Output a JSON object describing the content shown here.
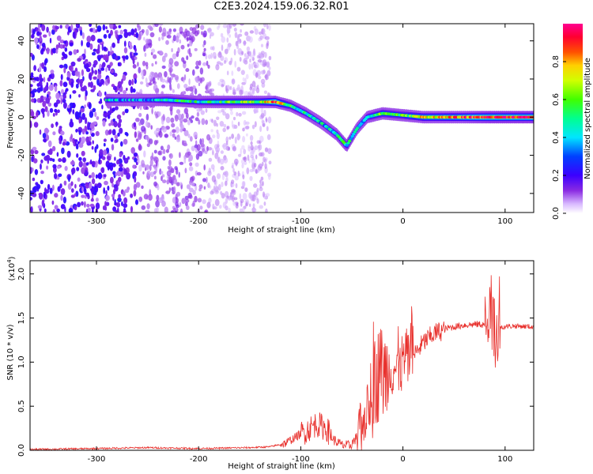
{
  "title": "C2E3.2024.159.06.32.R01",
  "colors": {
    "snr_line": "#e8302c",
    "frame": "#000000",
    "background": "#ffffff"
  },
  "chart_data": [
    {
      "type": "heatmap",
      "xlabel": "Height of straight line (km)",
      "ylabel": "Frequency (Hz)",
      "xlim": [
        -365,
        128
      ],
      "ylim": [
        -50,
        49
      ],
      "xticks": [
        -300,
        -200,
        -100,
        0,
        100
      ],
      "yticks": [
        -40,
        -20,
        0,
        20,
        40
      ],
      "colorbar": {
        "label": "Normalized spectral amplitude",
        "range": [
          0,
          1
        ],
        "ticks": [
          "0.0",
          "0.2",
          "0.4",
          "0.6",
          "0.8"
        ],
        "colormap": "rainbow (white-violet-blue-cyan-green-yellow-red-magenta)"
      },
      "ridge": [
        {
          "x": -290,
          "y": 9,
          "amp": 0.45
        },
        {
          "x": -260,
          "y": 9,
          "amp": 0.3
        },
        {
          "x": -230,
          "y": 9,
          "amp": 0.5
        },
        {
          "x": -200,
          "y": 8,
          "amp": 0.45
        },
        {
          "x": -170,
          "y": 8,
          "amp": 0.55
        },
        {
          "x": -140,
          "y": 8,
          "amp": 0.6
        },
        {
          "x": -125,
          "y": 8,
          "amp": 0.9
        },
        {
          "x": -110,
          "y": 6,
          "amp": 0.5
        },
        {
          "x": -95,
          "y": 2,
          "amp": 0.45
        },
        {
          "x": -80,
          "y": -3,
          "amp": 0.4
        },
        {
          "x": -65,
          "y": -9,
          "amp": 0.45
        },
        {
          "x": -55,
          "y": -15,
          "amp": 0.5
        },
        {
          "x": -45,
          "y": -6,
          "amp": 0.4
        },
        {
          "x": -35,
          "y": 0,
          "amp": 0.45
        },
        {
          "x": -20,
          "y": 2,
          "amp": 0.6
        },
        {
          "x": 0,
          "y": 1,
          "amp": 0.55
        },
        {
          "x": 20,
          "y": 0,
          "amp": 0.75
        },
        {
          "x": 50,
          "y": 0,
          "amp": 0.8
        },
        {
          "x": 85,
          "y": 0,
          "amp": 0.95
        },
        {
          "x": 128,
          "y": 0,
          "amp": 0.95
        }
      ],
      "noise_region": {
        "x_from": -365,
        "x_to": -130
      }
    },
    {
      "type": "line",
      "xlabel": "Height of straight line (km)",
      "ylabel": "SNR (10 * v/v)",
      "y_multiplier": "(x10",
      "y_multiplier_exp": "4",
      "y_multiplier_close": ")",
      "xlim": [
        -365,
        128
      ],
      "ylim": [
        0,
        2.15
      ],
      "xticks": [
        -300,
        -200,
        -100,
        0,
        100
      ],
      "yticks": [
        "0.0",
        "0.5",
        "1.0",
        "1.5",
        "2.0"
      ],
      "ytick_values": [
        0,
        0.5,
        1.0,
        1.5,
        2.0
      ],
      "series": [
        {
          "points": [
            [
              -365,
              0.01
            ],
            [
              -300,
              0.02
            ],
            [
              -250,
              0.03
            ],
            [
              -200,
              0.02
            ],
            [
              -150,
              0.03
            ],
            [
              -130,
              0.04
            ],
            [
              -115,
              0.08
            ],
            [
              -105,
              0.15
            ],
            [
              -95,
              0.22
            ],
            [
              -85,
              0.3
            ],
            [
              -75,
              0.25
            ],
            [
              -68,
              0.12
            ],
            [
              -60,
              0.06
            ],
            [
              -52,
              0.05
            ],
            [
              -45,
              0.15
            ],
            [
              -38,
              0.35
            ],
            [
              -32,
              0.55
            ],
            [
              -27,
              0.8
            ],
            [
              -22,
              0.9
            ],
            [
              -17,
              0.85
            ],
            [
              -10,
              0.95
            ],
            [
              -5,
              0.9
            ],
            [
              0,
              1.0
            ],
            [
              5,
              1.05
            ],
            [
              12,
              1.1
            ],
            [
              20,
              1.22
            ],
            [
              30,
              1.32
            ],
            [
              45,
              1.39
            ],
            [
              60,
              1.42
            ],
            [
              75,
              1.43
            ],
            [
              85,
              1.42
            ],
            [
              90,
              1.38
            ],
            [
              95,
              1.4
            ],
            [
              110,
              1.41
            ],
            [
              128,
              1.4
            ]
          ],
          "noise": [
            [
              -365,
              -120,
              0.01
            ],
            [
              -120,
              -100,
              0.05
            ],
            [
              -100,
              -70,
              0.15
            ],
            [
              -70,
              -45,
              0.06
            ],
            [
              -45,
              -30,
              0.3
            ],
            [
              -30,
              -15,
              0.55
            ],
            [
              -15,
              10,
              0.35
            ],
            [
              10,
              40,
              0.12
            ],
            [
              40,
              80,
              0.04
            ],
            [
              80,
              95,
              0.45
            ],
            [
              95,
              128,
              0.03
            ]
          ]
        }
      ]
    }
  ]
}
